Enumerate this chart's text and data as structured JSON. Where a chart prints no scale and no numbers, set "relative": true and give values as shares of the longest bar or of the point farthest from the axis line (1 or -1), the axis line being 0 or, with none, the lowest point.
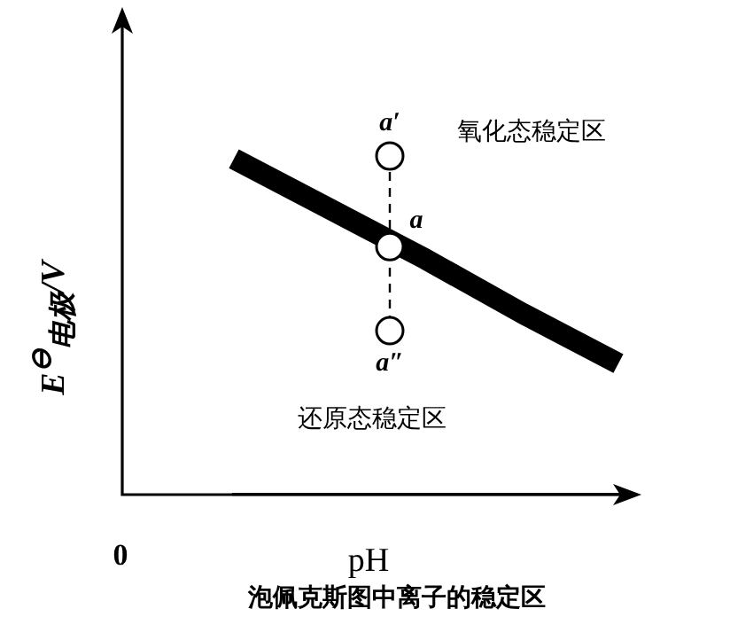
{
  "chart_data": {
    "type": "line",
    "relative": true,
    "title": "泡佩克斯图中离子的稳定区",
    "xlabel": "pH",
    "ylabel": "E$^{⊖}$$_{电极}$/V",
    "legend": false,
    "categories": [
      null,
      null,
      null,
      null,
      null
    ],
    "annotations": [
      "0",
      "氧化态稳定区",
      "还原态稳定区",
      {
        "text": "a′",
        "y": 1.01
      },
      {
        "text": "a",
        "y": 0.74
      },
      {
        "text": "a″",
        "y": 0.49
      }
    ],
    "series": [
      {
        "color": "#000000",
        "values": [
          1,
          0.85,
          0.7,
          0.54,
          0.39
        ],
        "line_style": "solid"
      }
    ]
  }
}
